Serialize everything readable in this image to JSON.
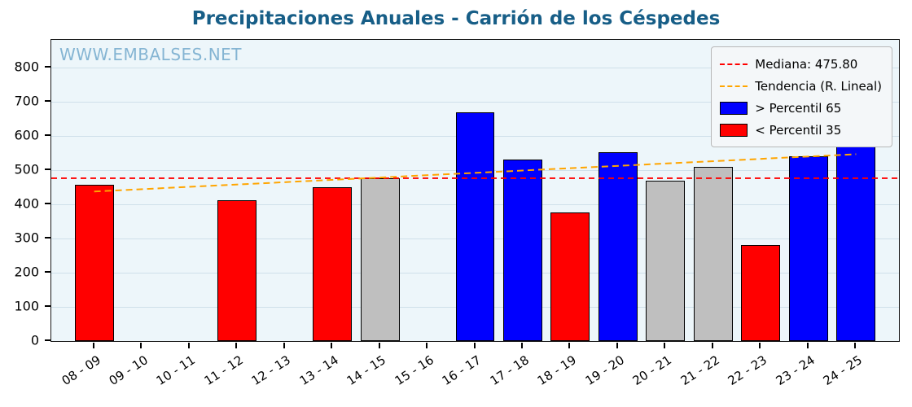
{
  "watermark": "WWW.EMBALSES.NET",
  "colors": {
    "title": "#175e87",
    "watermark": "#85b5d3",
    "plot_background": "#edf6fa",
    "median_line": "#ff0000",
    "trend_line": "#ffa500",
    "bar_blue": "#0000ff",
    "bar_red": "#ff0000",
    "bar_gray": "#bfbfbf"
  },
  "chart_data": {
    "type": "bar",
    "title": "Precipitaciones Anuales - Carrión de los Céspedes",
    "categories": [
      "08 - 09",
      "09 - 10",
      "10 - 11",
      "11 - 12",
      "12 - 13",
      "13 - 14",
      "14 - 15",
      "15 - 16",
      "16 - 17",
      "17 - 18",
      "18 - 19",
      "19 - 20",
      "20 - 21",
      "21 - 22",
      "22 - 23",
      "23 - 24",
      "24 - 25"
    ],
    "values": [
      457,
      null,
      null,
      412,
      null,
      449,
      476,
      null,
      668,
      530,
      377,
      552,
      468,
      509,
      281,
      541,
      748
    ],
    "bar_colors": [
      "red",
      null,
      null,
      "red",
      null,
      "red",
      "gray",
      null,
      "blue",
      "blue",
      "red",
      "blue",
      "gray",
      "gray",
      "red",
      "blue",
      "blue"
    ],
    "palette": {
      "blue": "#0000ff",
      "red": "#ff0000",
      "gray": "#bfbfbf"
    },
    "median": 475.8,
    "trend_line": {
      "y_start": 437,
      "y_end": 546
    },
    "ylim": [
      0,
      880
    ],
    "yticks": [
      0,
      100,
      200,
      300,
      400,
      500,
      600,
      700,
      800
    ],
    "xlabel": "",
    "ylabel": "",
    "grid": true,
    "legend_position": "upper right",
    "legend": [
      {
        "label": "Mediana: 475.80",
        "type": "dashed-line",
        "color": "#ff0000"
      },
      {
        "label": "Tendencia (R. Lineal)",
        "type": "dashed-line",
        "color": "#ffa500"
      },
      {
        "label": "> Percentil 65",
        "type": "patch",
        "color": "#0000ff"
      },
      {
        "label": "< Percentil 35",
        "type": "patch",
        "color": "#ff0000"
      }
    ]
  }
}
